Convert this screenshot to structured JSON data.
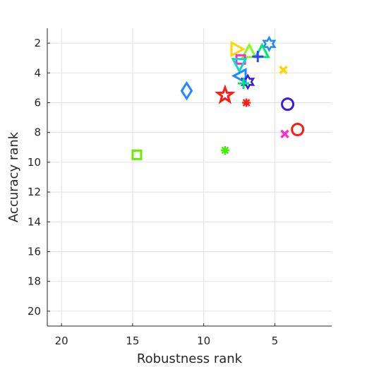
{
  "chart_data": {
    "type": "scatter",
    "title": "",
    "xlabel": "Robustness rank",
    "ylabel": "Accuracy rank",
    "xlim": [
      21,
      1
    ],
    "ylim": [
      21,
      1
    ],
    "x_reversed": true,
    "y_reversed": true,
    "xticks": [
      20,
      15,
      10,
      5
    ],
    "yticks": [
      2,
      4,
      6,
      8,
      10,
      12,
      14,
      16,
      18,
      20
    ],
    "xtick_labels": [
      "20",
      "15",
      "10",
      "5"
    ],
    "ytick_labels": [
      "2",
      "4",
      "6",
      "8",
      "10",
      "12",
      "14",
      "16",
      "18",
      "20"
    ],
    "grid": true,
    "legend": "none",
    "points": [
      {
        "x": 5.4,
        "y": 2.05,
        "marker": "hexagram",
        "color": "#1e88ff"
      },
      {
        "x": 7.7,
        "y": 2.4,
        "marker": "triangle-right",
        "color": "#ffd600"
      },
      {
        "x": 6.8,
        "y": 2.6,
        "marker": "triangle-up",
        "color": "#7dff1a"
      },
      {
        "x": 5.9,
        "y": 2.6,
        "marker": "triangle-up",
        "color": "#00e676"
      },
      {
        "x": 6.2,
        "y": 2.9,
        "marker": "plus",
        "color": "#3d3dff"
      },
      {
        "x": 7.4,
        "y": 3.1,
        "marker": "square",
        "color": "#ff2ad4"
      },
      {
        "x": 7.5,
        "y": 3.4,
        "marker": "triangle-down",
        "color": "#00e0c0"
      },
      {
        "x": 4.4,
        "y": 3.8,
        "marker": "x",
        "color": "#ffd600"
      },
      {
        "x": 7.4,
        "y": 4.2,
        "marker": "triangle-left",
        "color": "#1e88ff"
      },
      {
        "x": 6.9,
        "y": 4.6,
        "marker": "hexagram",
        "color": "#3d17e6"
      },
      {
        "x": 7.2,
        "y": 4.7,
        "marker": "plus",
        "color": "#00e676"
      },
      {
        "x": 11.2,
        "y": 5.2,
        "marker": "diamond",
        "color": "#1e88ff"
      },
      {
        "x": 8.5,
        "y": 5.5,
        "marker": "pentagram",
        "color": "#ff1a1a"
      },
      {
        "x": 7.0,
        "y": 6.0,
        "marker": "asterisk",
        "color": "#ff1a1a"
      },
      {
        "x": 4.1,
        "y": 6.1,
        "marker": "circle",
        "color": "#3d17e6"
      },
      {
        "x": 3.4,
        "y": 7.8,
        "marker": "circle",
        "color": "#ff1a1a"
      },
      {
        "x": 4.3,
        "y": 8.1,
        "marker": "x",
        "color": "#ff2ad4"
      },
      {
        "x": 8.5,
        "y": 9.2,
        "marker": "asterisk",
        "color": "#44ee00"
      },
      {
        "x": 14.7,
        "y": 9.5,
        "marker": "square",
        "color": "#66ee00"
      }
    ]
  },
  "colors": {
    "axis": "#262626",
    "grid": "#e0e0e0",
    "background": "#ffffff"
  }
}
